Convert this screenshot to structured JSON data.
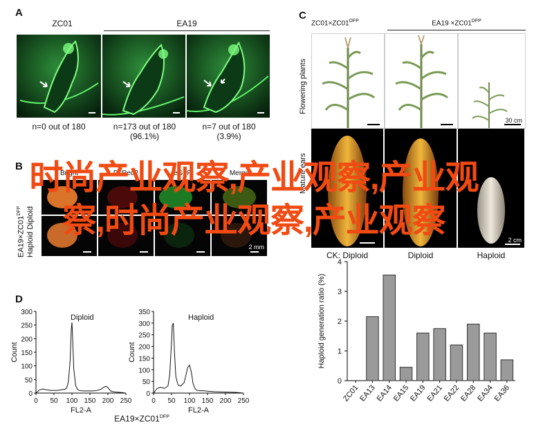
{
  "panelA": {
    "label": "A",
    "genotypes": [
      "ZC01",
      "EA19"
    ],
    "captions": [
      {
        "line1": "n=0 out of 180",
        "line2": ""
      },
      {
        "line1": "n=173 out of 180",
        "line2": "(96.1%)"
      },
      {
        "line1": "n=7 out of 180",
        "line2": "(3.9%)"
      }
    ]
  },
  "panelB": {
    "label": "B",
    "side_label_line1": "EA19×ZC01",
    "side_label_sup": "DFP",
    "side_label_line2": "Haploid  Diploid",
    "columns": [
      "Bright",
      "DsRed2",
      "eGFP",
      "Merge"
    ],
    "scale": "2 mm"
  },
  "panelC": {
    "label": "C",
    "header_left": "ZC01×ZC01",
    "header_left_sup": "DFP",
    "header_right": "EA19 ×ZC01",
    "header_right_sup": "DFP",
    "row_labels": [
      "Flowering plants",
      "Mature ears"
    ],
    "scale_top": "30 cm",
    "scale_bottom": "2 cm",
    "ear_captions": [
      "CK: Diploid",
      "Diploid",
      "Haploid"
    ]
  },
  "panelD": {
    "label": "D",
    "footer": "EA19×ZC01",
    "footer_sup": "DFP"
  },
  "overlay_text": "时尚产业观察,产业观察,产业观察,时尚产业观察,产业观察",
  "chart_data": [
    {
      "type": "line",
      "title": "Diploid",
      "xlabel": "FL2-A",
      "ylabel": "Count",
      "xlim": [
        0,
        250
      ],
      "ylim": [
        0,
        300
      ],
      "xticks": [
        0,
        50,
        100,
        150,
        200,
        250
      ],
      "yticks": [
        0,
        50,
        100,
        150,
        200,
        250,
        300
      ],
      "x": [
        0,
        10,
        20,
        30,
        40,
        50,
        60,
        70,
        80,
        85,
        90,
        95,
        98,
        100,
        102,
        105,
        110,
        115,
        120,
        130,
        140,
        150,
        160,
        170,
        180,
        190,
        195,
        200,
        205,
        210,
        220,
        230,
        240,
        250
      ],
      "y": [
        0,
        12,
        15,
        12,
        10,
        10,
        10,
        12,
        14,
        18,
        40,
        120,
        230,
        260,
        200,
        90,
        30,
        14,
        10,
        8,
        8,
        8,
        8,
        10,
        14,
        22,
        25,
        20,
        12,
        6,
        4,
        3,
        2,
        0
      ]
    },
    {
      "type": "line",
      "title": "Haploid",
      "xlabel": "FL2-A",
      "ylabel": "Count",
      "xlim": [
        0,
        250
      ],
      "ylim": [
        0,
        350
      ],
      "xticks": [
        0,
        50,
        100,
        150,
        200,
        250
      ],
      "yticks": [
        0,
        50,
        100,
        150,
        200,
        250,
        300,
        350
      ],
      "x": [
        0,
        10,
        20,
        30,
        40,
        45,
        50,
        52,
        55,
        58,
        62,
        68,
        75,
        85,
        95,
        100,
        105,
        110,
        115,
        120,
        130,
        140,
        150,
        170,
        190,
        210,
        230,
        250
      ],
      "y": [
        0,
        20,
        25,
        20,
        30,
        80,
        220,
        290,
        300,
        180,
        70,
        35,
        30,
        45,
        110,
        120,
        90,
        40,
        20,
        12,
        10,
        10,
        8,
        6,
        5,
        4,
        3,
        0
      ]
    },
    {
      "type": "bar",
      "title": "",
      "xlabel": "",
      "ylabel": "Haploid generation ratio (%)",
      "ylim": [
        0,
        4
      ],
      "yticks": [
        0,
        1,
        2,
        3,
        4
      ],
      "categories": [
        "ZC01",
        "EA13",
        "EA14",
        "EA15",
        "EA19",
        "EA21",
        "EA22",
        "EA28",
        "EA34",
        "EA36"
      ],
      "values": [
        0,
        2.15,
        3.55,
        0.45,
        1.6,
        1.75,
        1.2,
        1.9,
        1.6,
        0.7
      ],
      "bar_color": "#9a9a9a"
    }
  ]
}
